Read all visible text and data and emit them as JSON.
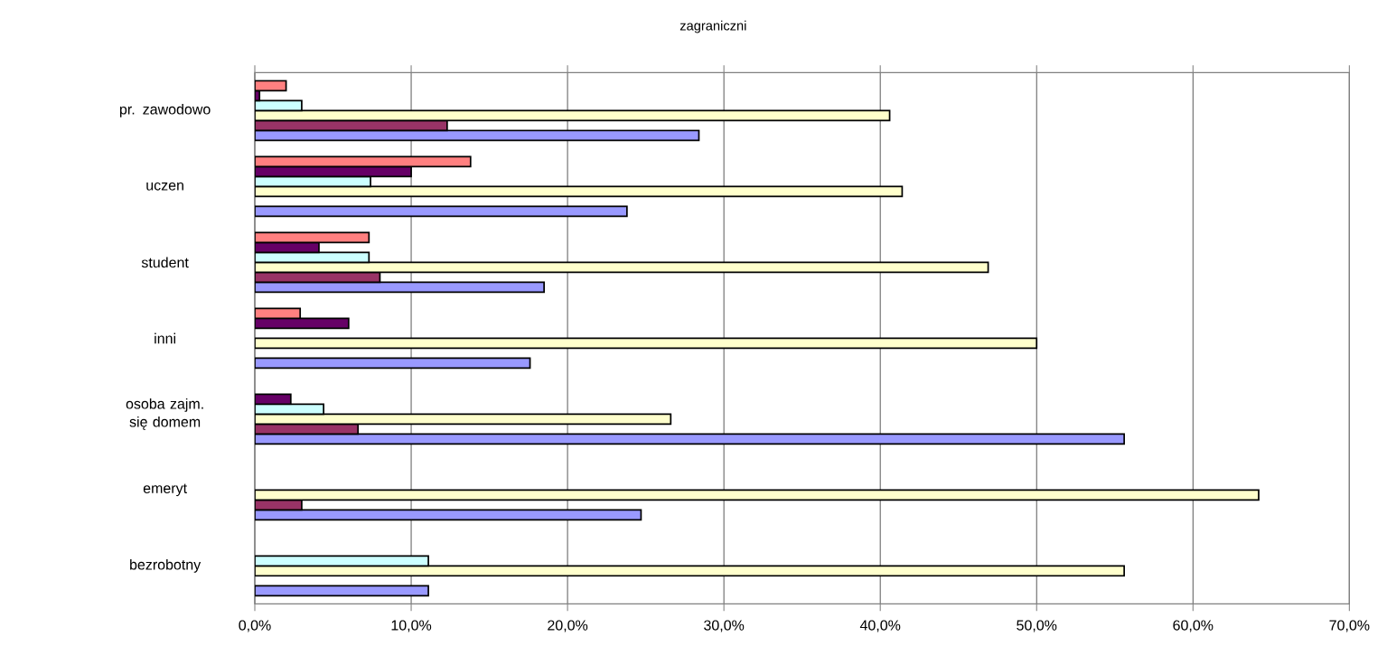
{
  "chart_data": {
    "type": "bar",
    "orientation": "horizontal",
    "title": "zagraniczni",
    "categories": [
      "pr. zawodowo",
      "uczen",
      "student",
      "inni",
      "osoba zajm. się domem",
      "emeryt",
      "bezrobotny"
    ],
    "series": [
      {
        "color": "#9999ff",
        "values": [
          28.4,
          23.8,
          18.5,
          17.6,
          55.6,
          24.7,
          11.1
        ]
      },
      {
        "color": "#993366",
        "values": [
          12.3,
          null,
          8.0,
          null,
          6.6,
          3.0,
          null
        ]
      },
      {
        "color": "#ffffcc",
        "values": [
          40.6,
          41.4,
          46.9,
          50.0,
          26.6,
          64.2,
          55.6
        ]
      },
      {
        "color": "#ccffff",
        "values": [
          3.0,
          7.4,
          7.3,
          null,
          4.4,
          null,
          11.1
        ]
      },
      {
        "color": "#660066",
        "values": [
          0.3,
          10.0,
          4.1,
          6.0,
          2.3,
          null,
          null
        ]
      },
      {
        "color": "#ff8080",
        "values": [
          2.0,
          13.8,
          7.3,
          2.9,
          null,
          null,
          null
        ]
      }
    ],
    "xlim": [
      0,
      70
    ],
    "xticks": [
      {
        "value": 0,
        "label": "0,0%"
      },
      {
        "value": 10,
        "label": "10,0%"
      },
      {
        "value": 20,
        "label": "20,0%"
      },
      {
        "value": 30,
        "label": "30,0%"
      },
      {
        "value": 40,
        "label": "40,0%"
      },
      {
        "value": 50,
        "label": "50,0%"
      },
      {
        "value": 60,
        "label": "60,0%"
      },
      {
        "value": 70,
        "label": "70,0%"
      }
    ],
    "grid": "x"
  }
}
